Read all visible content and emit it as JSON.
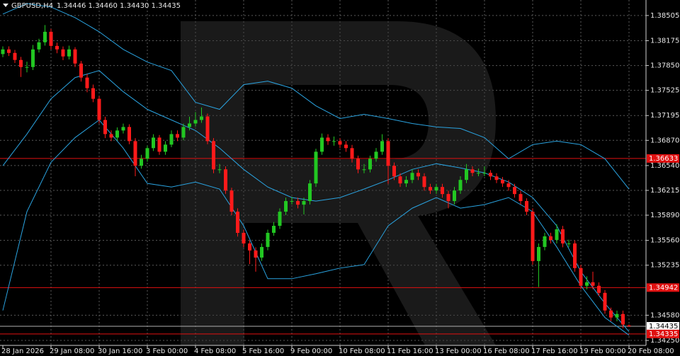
{
  "chart_data": {
    "type": "candlestick",
    "title": "GBPUSD,H4",
    "ohlc_text": "1.34446 1.34460 1.34430 1.34435",
    "categories": [
      "28 Jan 2026",
      null,
      null,
      null,
      null,
      null,
      null,
      null,
      "29 Jan 08:00",
      null,
      null,
      null,
      null,
      null,
      null,
      null,
      "30 Jan 16:00",
      null,
      null,
      null,
      null,
      null,
      null,
      null,
      "3 Feb 00:00",
      null,
      null,
      null,
      null,
      null,
      null,
      null,
      "4 Feb 08:00",
      null,
      null,
      null,
      null,
      null,
      null,
      null,
      "5 Feb 16:00",
      null,
      null,
      null,
      null,
      null,
      null,
      null,
      "9 Feb 00:00",
      null,
      null,
      null,
      null,
      null,
      null,
      null,
      "10 Feb 08:00",
      null,
      null,
      null,
      null,
      null,
      null,
      null,
      "11 Feb 16:00",
      null,
      null,
      null,
      null,
      null,
      null,
      null,
      "13 Feb 00:00",
      null,
      null,
      null,
      null,
      null,
      null,
      null,
      "16 Feb 08:00",
      null,
      null,
      null,
      null,
      null,
      null,
      null,
      "17 Feb 16:00",
      null,
      null,
      null,
      null,
      null,
      null,
      null,
      "19 Feb 00:00",
      null,
      null,
      null,
      null,
      null,
      null,
      null,
      "20 Feb 08:00"
    ],
    "open": [
      1.38,
      1.38061,
      1.38015,
      1.37923,
      1.3783,
      1.3783,
      1.38061,
      1.38154,
      1.38292,
      1.38107,
      1.38061,
      1.37969,
      1.38061,
      1.37876,
      1.37692,
      1.37553,
      1.37414,
      1.37137,
      1.36952,
      1.36906,
      1.36999,
      1.37045,
      1.3686,
      1.36537,
      1.36629,
      1.36768,
      1.36906,
      1.36721,
      1.36814,
      1.36952,
      1.36906,
      1.37045,
      1.37091,
      1.37137,
      1.37183,
      1.3686,
      1.3649,
      1.3649,
      1.36213,
      1.35936,
      1.35659,
      1.3552,
      1.35428,
      1.35335,
      1.35474,
      1.35659,
      1.35751,
      1.35936,
      1.36075,
      1.36075,
      1.36028,
      1.36075,
      1.36306,
      1.36721,
      1.36906,
      1.3686,
      1.3686,
      1.36814,
      1.36768,
      1.36629,
      1.3649,
      1.3649,
      1.36629,
      1.36721,
      1.3686,
      1.36537,
      1.36398,
      1.36306,
      1.36352,
      1.36444,
      1.36398,
      1.36259,
      1.36213,
      1.36259,
      1.36167,
      1.36075,
      1.36213,
      1.36352,
      1.3649,
      1.36444,
      1.36444,
      1.36444,
      1.36398,
      1.36352,
      1.36306,
      1.36259,
      1.36167,
      1.36075,
      1.35936,
      1.35289,
      1.35474,
      1.35613,
      1.35566,
      1.35705,
      1.3552,
      1.3552,
      1.35197,
      1.34966,
      1.35012,
      1.34966,
      1.34873,
      1.34642,
      1.3455,
      1.34596,
      1.34446
    ],
    "high": [
      1.38101,
      1.38101,
      1.38055,
      1.37963,
      1.379,
      1.3812,
      1.382,
      1.3838,
      1.3833,
      1.3815,
      1.381,
      1.3811,
      1.3809,
      1.3791,
      1.3774,
      1.376,
      1.3745,
      1.3718,
      1.37,
      1.3704,
      1.3709,
      1.3708,
      1.369,
      1.3668,
      1.368,
      1.3695,
      1.3694,
      1.3686,
      1.37,
      1.37,
      1.3709,
      1.3718,
      1.3724,
      1.373,
      1.3722,
      1.369,
      1.3656,
      1.3653,
      1.3625,
      1.3598,
      1.357,
      1.3556,
      1.3547,
      1.3552,
      1.357,
      1.358,
      1.3598,
      1.3612,
      1.3613,
      1.3612,
      1.3612,
      1.3635,
      1.3676,
      1.3696,
      1.3695,
      1.3692,
      1.369,
      1.3686,
      1.3681,
      1.3667,
      1.3656,
      1.3667,
      1.3677,
      1.3695,
      1.369,
      1.3658,
      1.3644,
      1.364,
      1.3649,
      1.3649,
      1.3644,
      1.363,
      1.363,
      1.363,
      1.3621,
      1.3626,
      1.364,
      1.3656,
      1.3653,
      1.365,
      1.3653,
      1.3648,
      1.3644,
      1.3639,
      1.3635,
      1.363,
      1.3621,
      1.3611,
      1.3598,
      1.3552,
      1.3566,
      1.3566,
      1.3577,
      1.3575,
      1.3557,
      1.3556,
      1.3524,
      1.3509,
      1.3515,
      1.3501,
      1.3491,
      1.3468,
      1.3464,
      1.3464,
      1.3446
    ],
    "low": [
      1.3796,
      1.37975,
      1.37883,
      1.377,
      1.3776,
      1.3779,
      1.3802,
      1.3811,
      1.3806,
      1.3801,
      1.3792,
      1.3793,
      1.3783,
      1.3764,
      1.375,
      1.3737,
      1.3709,
      1.369,
      1.3686,
      1.3687,
      1.3696,
      1.3682,
      1.364,
      1.365,
      1.3659,
      1.3673,
      1.3668,
      1.3668,
      1.3678,
      1.3686,
      1.3687,
      1.37,
      1.3705,
      1.371,
      1.3682,
      1.3644,
      1.3644,
      1.3617,
      1.3589,
      1.3561,
      1.3547,
      1.3525,
      1.3515,
      1.3529,
      1.3543,
      1.3562,
      1.3571,
      1.3589,
      1.3603,
      1.3598,
      1.359,
      1.3603,
      1.3626,
      1.3668,
      1.3681,
      1.368,
      1.3677,
      1.3672,
      1.3658,
      1.3644,
      1.3644,
      1.3645,
      1.3659,
      1.3668,
      1.363,
      1.3635,
      1.3626,
      1.3626,
      1.3631,
      1.3635,
      1.3621,
      1.3617,
      1.3617,
      1.3612,
      1.3598,
      1.3603,
      1.3617,
      1.3631,
      1.364,
      1.364,
      1.364,
      1.3635,
      1.3631,
      1.3626,
      1.3621,
      1.3612,
      1.3603,
      1.3589,
      1.3524,
      1.3495,
      1.3543,
      1.3552,
      1.3552,
      1.3547,
      1.3547,
      1.3515,
      1.3492,
      1.3492,
      1.3492,
      1.3483,
      1.346,
      1.345,
      1.345,
      1.3441,
      1.3443
    ],
    "close": [
      1.38061,
      1.38015,
      1.37923,
      1.3783,
      1.3783,
      1.38061,
      1.38154,
      1.38292,
      1.38107,
      1.38061,
      1.37969,
      1.38061,
      1.37876,
      1.37692,
      1.37553,
      1.37414,
      1.37137,
      1.36952,
      1.36906,
      1.36999,
      1.37045,
      1.3686,
      1.36537,
      1.36629,
      1.36768,
      1.36906,
      1.36721,
      1.36814,
      1.36952,
      1.36906,
      1.37045,
      1.37091,
      1.37137,
      1.37183,
      1.3686,
      1.3649,
      1.3649,
      1.36213,
      1.35936,
      1.35659,
      1.3552,
      1.35428,
      1.35335,
      1.35474,
      1.35659,
      1.35751,
      1.35936,
      1.36075,
      1.36075,
      1.36028,
      1.36075,
      1.36306,
      1.36721,
      1.36906,
      1.3686,
      1.3686,
      1.36814,
      1.36768,
      1.36629,
      1.3649,
      1.3649,
      1.36629,
      1.36721,
      1.3686,
      1.36537,
      1.36398,
      1.36306,
      1.36352,
      1.36444,
      1.36398,
      1.36259,
      1.36213,
      1.36259,
      1.36167,
      1.36075,
      1.36213,
      1.36352,
      1.3649,
      1.36444,
      1.36444,
      1.36444,
      1.36398,
      1.36352,
      1.36306,
      1.36259,
      1.36167,
      1.36075,
      1.35936,
      1.35289,
      1.35474,
      1.35613,
      1.35566,
      1.35705,
      1.3552,
      1.3552,
      1.35197,
      1.34966,
      1.35012,
      1.34966,
      1.34873,
      1.34642,
      1.3455,
      1.34596,
      1.34458,
      1.34435
    ],
    "up_color": "#22c722",
    "down_color": "#ff1a1a",
    "bands": {
      "color": "#2aa3e0",
      "x": [
        0,
        4,
        8,
        12,
        16,
        20,
        24,
        28,
        32,
        36,
        40,
        44,
        48,
        52,
        56,
        60,
        64,
        68,
        72,
        76,
        80,
        84,
        88,
        92,
        96,
        100,
        104
      ],
      "upper": [
        1.38523,
        1.38662,
        1.38616,
        1.38477,
        1.38292,
        1.38061,
        1.37895,
        1.37784,
        1.37368,
        1.37276,
        1.37599,
        1.37645,
        1.37553,
        1.37322,
        1.37156,
        1.37211,
        1.37156,
        1.37091,
        1.37045,
        1.37026,
        1.36906,
        1.36629,
        1.36814,
        1.3686,
        1.36814,
        1.36629,
        1.36232
      ],
      "middle": [
        1.36537,
        1.36952,
        1.37414,
        1.37692,
        1.37784,
        1.37507,
        1.37276,
        1.37137,
        1.36999,
        1.36768,
        1.3649,
        1.36259,
        1.36121,
        1.36075,
        1.36121,
        1.36232,
        1.36352,
        1.3649,
        1.36564,
        1.36509,
        1.36444,
        1.36324,
        1.36121,
        1.35751,
        1.35151,
        1.34735,
        1.34365
      ],
      "lower": [
        1.34642,
        1.35936,
        1.36583,
        1.36906,
        1.37137,
        1.36768,
        1.36306,
        1.36259,
        1.36324,
        1.36232,
        1.35751,
        1.35058,
        1.35058,
        1.35123,
        1.35197,
        1.35243,
        1.35751,
        1.35982,
        1.36121,
        1.35982,
        1.36028,
        1.36121,
        1.35936,
        1.35474,
        1.34966,
        1.3455,
        1.34319
      ]
    },
    "levels": [
      {
        "value": 1.36633,
        "color": "#e01010"
      },
      {
        "value": 1.34942,
        "color": "#e01010"
      },
      {
        "value": 1.34435,
        "color": "#b0b0b0"
      },
      {
        "value": 1.34335,
        "color": "#e01010"
      }
    ],
    "ylim": [
      1.34185,
      1.38708
    ],
    "yticks": [
      1.38505,
      1.38175,
      {
        "value": 1.3785,
        "label": "1.37850"
      },
      1.37525,
      1.37195,
      {
        "value": 1.3687,
        "label": "1.36870"
      },
      {
        "value": 1.3654,
        "label": "1.36540"
      },
      1.36215,
      {
        "value": 1.3589,
        "label": "1.35890"
      },
      {
        "value": 1.3556,
        "label": "1.35560"
      },
      1.35235,
      {
        "value": 1.3458,
        "label": "1.34580"
      },
      {
        "value": 1.3425,
        "label": "1.34250"
      }
    ],
    "grid": true
  }
}
